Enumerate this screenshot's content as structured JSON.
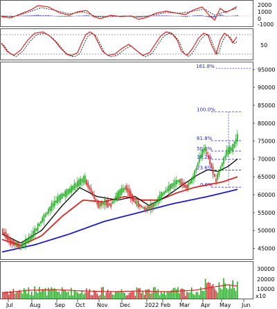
{
  "chart_data": {
    "type": "candlestick",
    "colors": {
      "up": "#11aa11",
      "down": "#dd2222",
      "ma_short": "#dd2222",
      "ma_mid": "#000000",
      "ma_long": "#1a1acc",
      "fib": "#3333ee",
      "volume_up": "#11aa11",
      "volume_down": "#dd2222"
    },
    "x_ticks": [
      "Jul",
      "Aug",
      "Sep",
      "Oct",
      "Nov",
      "Dec",
      "2022",
      "Feb",
      "Mar",
      "Apr",
      "May",
      "Jun"
    ],
    "macd_panel": {
      "y_ticks": [
        "2000",
        "1000",
        "0",
        "-1000"
      ]
    },
    "stoch_panel": {
      "y_ticks": [
        "50"
      ]
    },
    "price_panel": {
      "y_ticks": [
        "95000",
        "90000",
        "85000",
        "80000",
        "75000",
        "70000",
        "65000",
        "60000",
        "55000",
        "50000",
        "45000"
      ],
      "ylim": [
        42000,
        97000
      ],
      "fibonacci": [
        {
          "label": "161.8%",
          "price": 95300
        },
        {
          "label": "100.0%",
          "price": 83200
        },
        {
          "label": "61.8%",
          "price": 75100
        },
        {
          "label": "50.0%",
          "price": 72200
        },
        {
          "label": "38.2%",
          "price": 69900
        },
        {
          "label": "23.6%",
          "price": 66900
        },
        {
          "label": "0.0%",
          "price": 62100
        }
      ]
    },
    "volume_panel": {
      "y_ticks": [
        "30000",
        "20000",
        "10000"
      ],
      "unit": "x10"
    }
  }
}
